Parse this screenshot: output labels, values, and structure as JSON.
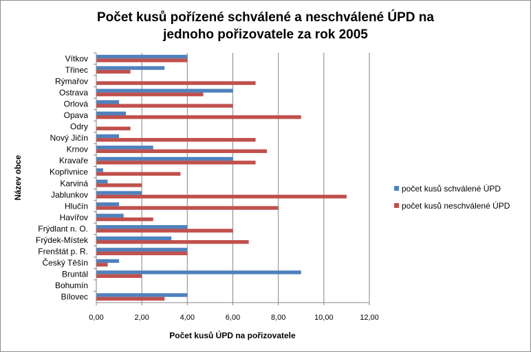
{
  "colors": {
    "approved": "#4f81bd",
    "unapproved": "#c0504d",
    "gridline": "#868686",
    "axis": "#868686"
  },
  "chart_data": {
    "type": "bar",
    "orientation": "horizontal",
    "title_line1": "Počet kusů pořízené schválené a neschválené ÚPD na",
    "title_line2": "jednoho pořizovatele za rok 2005",
    "xlabel": "Počet kusů ÚPD na pořizovatele",
    "ylabel": "Název obce",
    "xlim": [
      0,
      12
    ],
    "xticks": [
      "0,00",
      "2,00",
      "4,00",
      "6,00",
      "8,00",
      "10,00",
      "12,00"
    ],
    "grid": true,
    "legend_position": "right",
    "categories": [
      "Bílovec",
      "Bohumín",
      "Bruntál",
      "Český Těšín",
      "Frenštát p. R.",
      "Frýdek-Místek",
      "Frýdlant n. O.",
      "Havířov",
      "Hlučín",
      "Jablunkov",
      "Karviná",
      "Kopřivnice",
      "Kravaře",
      "Krnov",
      "Nový Jičín",
      "Odry",
      "Opava",
      "Orlová",
      "Ostrava",
      "Rýmařov",
      "Třinec",
      "Vítkov"
    ],
    "series": [
      {
        "name": "počet kusů schválené ÚPD",
        "values": [
          4.0,
          0.0,
          9.0,
          1.0,
          4.0,
          3.3,
          4.0,
          1.2,
          1.0,
          2.0,
          0.5,
          0.3,
          6.0,
          2.5,
          1.0,
          0.0,
          1.3,
          1.0,
          6.0,
          0.0,
          3.0,
          4.0
        ]
      },
      {
        "name": "počet kusů neschválené  ÚPD",
        "values": [
          3.0,
          0.0,
          2.0,
          0.5,
          4.0,
          6.7,
          6.0,
          2.5,
          8.0,
          11.0,
          2.0,
          3.7,
          7.0,
          7.5,
          7.0,
          1.5,
          9.0,
          6.0,
          4.7,
          7.0,
          1.5,
          4.0
        ]
      }
    ]
  }
}
